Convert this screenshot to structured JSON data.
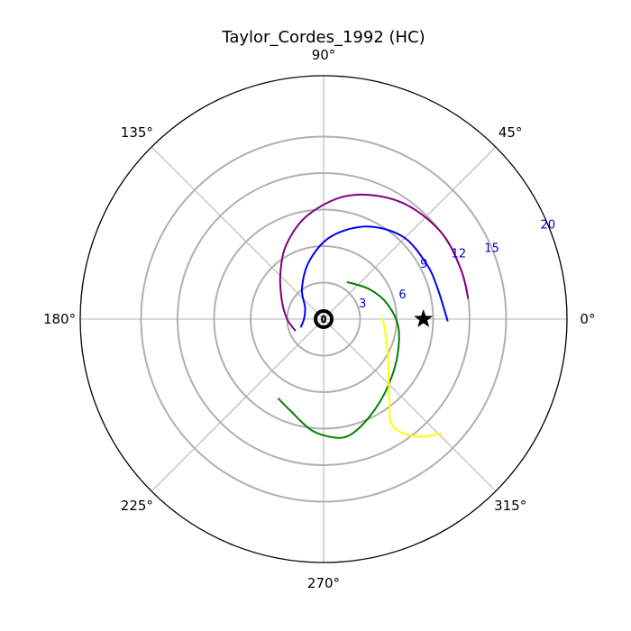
{
  "chart_data": {
    "type": "polar",
    "title": "Taylor_Cordes_1992 (HC)",
    "angle_ticks": [
      {
        "deg": 0,
        "label": "0°"
      },
      {
        "deg": 45,
        "label": "45°"
      },
      {
        "deg": 90,
        "label": "90°"
      },
      {
        "deg": 135,
        "label": "135°"
      },
      {
        "deg": 180,
        "label": "180°"
      },
      {
        "deg": 225,
        "label": "225°"
      },
      {
        "deg": 270,
        "label": "270°"
      },
      {
        "deg": 315,
        "label": "315°"
      }
    ],
    "radial_ticks": [
      {
        "r": 20,
        "label": "20"
      },
      {
        "r": 15,
        "label": "15"
      }
    ],
    "r_max": 20,
    "grid_rings": [
      3,
      6,
      9,
      12,
      15
    ],
    "ring_labels": [
      {
        "r": 3,
        "label": "3"
      },
      {
        "r": 6,
        "label": "6"
      },
      {
        "r": 9,
        "label": "9"
      },
      {
        "r": 12,
        "label": "12"
      }
    ],
    "ring_label_color": "#0000cc",
    "grid_color": "#b0b0b0",
    "outline_color": "#000000",
    "series": [
      {
        "color": "#800080",
        "points": [
          [
            2.5,
            203
          ],
          [
            3.0,
            180
          ],
          [
            3.8,
            155
          ],
          [
            5.2,
            133
          ],
          [
            6.9,
            116
          ],
          [
            8.7,
            98
          ],
          [
            10.4,
            78
          ],
          [
            11.5,
            57
          ],
          [
            12.0,
            37
          ],
          [
            12.0,
            20
          ],
          [
            12.0,
            8
          ]
        ]
      },
      {
        "color": "#0000ff",
        "points": [
          [
            2.0,
            200
          ],
          [
            1.6,
            178
          ],
          [
            1.8,
            148
          ],
          [
            3.1,
            125
          ],
          [
            4.9,
            104
          ],
          [
            6.8,
            85
          ],
          [
            8.4,
            65
          ],
          [
            9.4,
            46
          ],
          [
            9.6,
            28
          ],
          [
            9.7,
            15
          ],
          [
            10.2,
            -1
          ]
        ]
      },
      {
        "color": "#008000",
        "points": [
          [
            3.6,
            58
          ],
          [
            4.5,
            33
          ],
          [
            5.4,
            13
          ],
          [
            6.2,
            -7
          ],
          [
            6.9,
            -30
          ],
          [
            7.8,
            -49
          ],
          [
            8.8,
            -64
          ],
          [
            9.7,
            -76
          ],
          [
            9.8,
            -84
          ],
          [
            9.2,
            -96
          ],
          [
            8.0,
            -110
          ],
          [
            7.5,
            -120
          ]
        ]
      },
      {
        "color": "#ffff00",
        "points": [
          [
            4.8,
            1
          ],
          [
            5.0,
            -6
          ],
          [
            5.4,
            -18
          ],
          [
            6.2,
            -31
          ],
          [
            7.3,
            -43
          ],
          [
            8.8,
            -52
          ],
          [
            10.2,
            -57
          ],
          [
            11.5,
            -55
          ],
          [
            12.6,
            -50
          ],
          [
            13.5,
            -44
          ]
        ]
      }
    ],
    "markers": [
      {
        "type": "star",
        "r": 8.2,
        "deg": 0,
        "color": "#000000"
      },
      {
        "type": "target",
        "r": 0,
        "deg": 0,
        "color": "#000000"
      }
    ],
    "grid": true
  }
}
